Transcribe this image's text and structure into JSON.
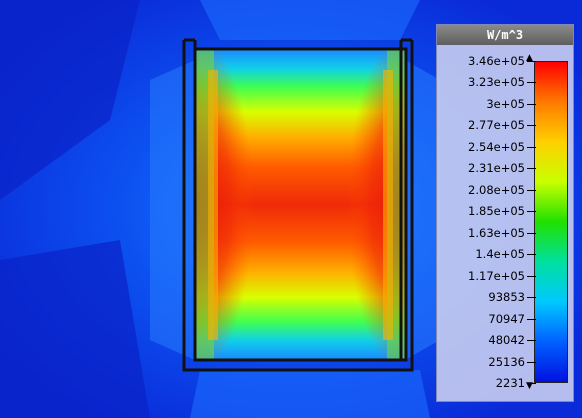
{
  "legend": {
    "unit": "W/m^3",
    "labels": [
      "3.46e+05",
      "3.23e+05",
      "3e+05",
      "2.77e+05",
      "2.54e+05",
      "2.31e+05",
      "2.08e+05",
      "1.85e+05",
      "1.63e+05",
      "1.4e+05",
      "1.17e+05",
      "93853",
      "70947",
      "48042",
      "25136",
      "2231"
    ],
    "max_marker": "▲",
    "min_marker": "▼",
    "colors": [
      "#ff0000",
      "#ff7a00",
      "#ffd000",
      "#c8ff00",
      "#20e000",
      "#00e0a0",
      "#00c8ff",
      "#0060ff",
      "#0010e0"
    ]
  },
  "plot": {
    "background_color": "#0a2ad8",
    "hot_color": "#e8120a",
    "outline_color": "#111111"
  }
}
